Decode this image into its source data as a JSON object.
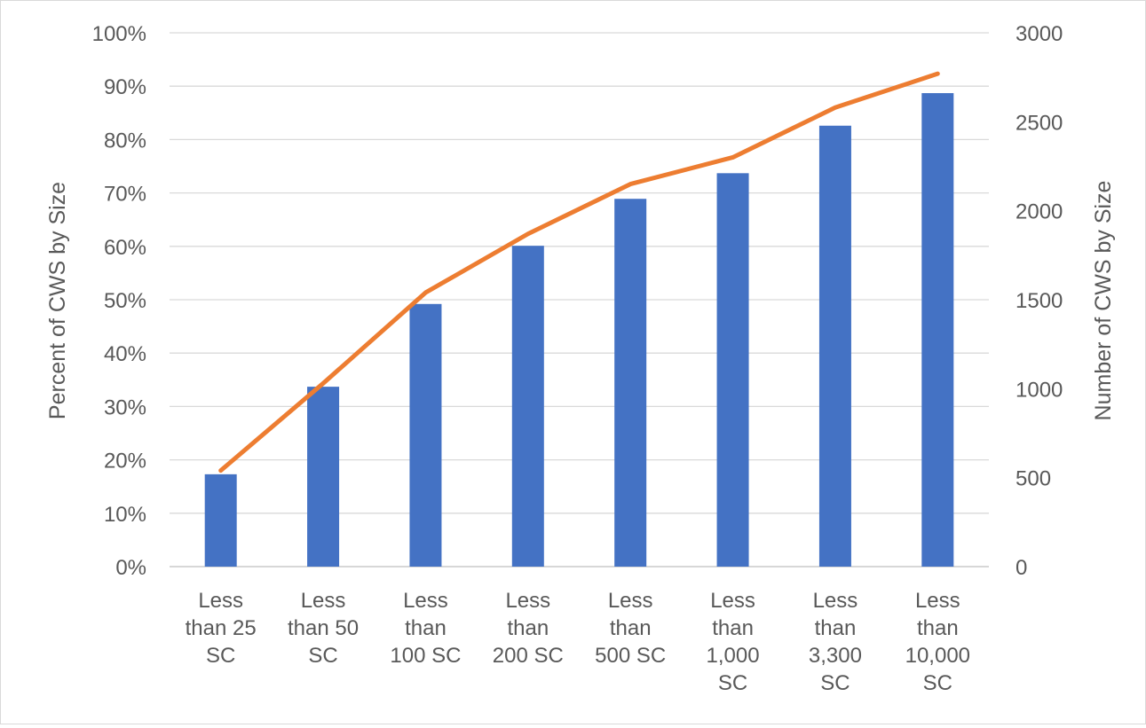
{
  "chart_data": {
    "type": "bar",
    "categories": [
      [
        "Less",
        "than 25",
        "SC"
      ],
      [
        "Less",
        "than 50",
        "SC"
      ],
      [
        "Less",
        "than",
        "100 SC"
      ],
      [
        "Less",
        "than",
        "200 SC"
      ],
      [
        "Less",
        "than",
        "500 SC"
      ],
      [
        "Less",
        "than",
        "1,000",
        "SC"
      ],
      [
        "Less",
        "than",
        "3,300",
        "SC"
      ],
      [
        "Less",
        "than",
        "10,000",
        "SC"
      ]
    ],
    "series": [
      {
        "type": "bar",
        "axis": "left",
        "values": [
          17.3,
          33.7,
          49.2,
          60.1,
          68.9,
          73.7,
          82.6,
          88.7
        ],
        "color": "#4472C4"
      },
      {
        "type": "line",
        "axis": "right",
        "values": [
          540,
          1030,
          1540,
          1870,
          2150,
          2300,
          2580,
          2770
        ],
        "color": "#ED7D31"
      }
    ],
    "ylabel": "Percent of CWS by Size",
    "y2label": "Number of CWS by Size",
    "ylim": [
      0,
      100
    ],
    "y2lim": [
      0,
      3000
    ],
    "yticks": [
      "0%",
      "10%",
      "20%",
      "30%",
      "40%",
      "50%",
      "60%",
      "70%",
      "80%",
      "90%",
      "100%"
    ],
    "y2ticks": [
      "0",
      "500",
      "1000",
      "1500",
      "2000",
      "2500",
      "3000"
    ],
    "grid": true,
    "legend": "none"
  }
}
